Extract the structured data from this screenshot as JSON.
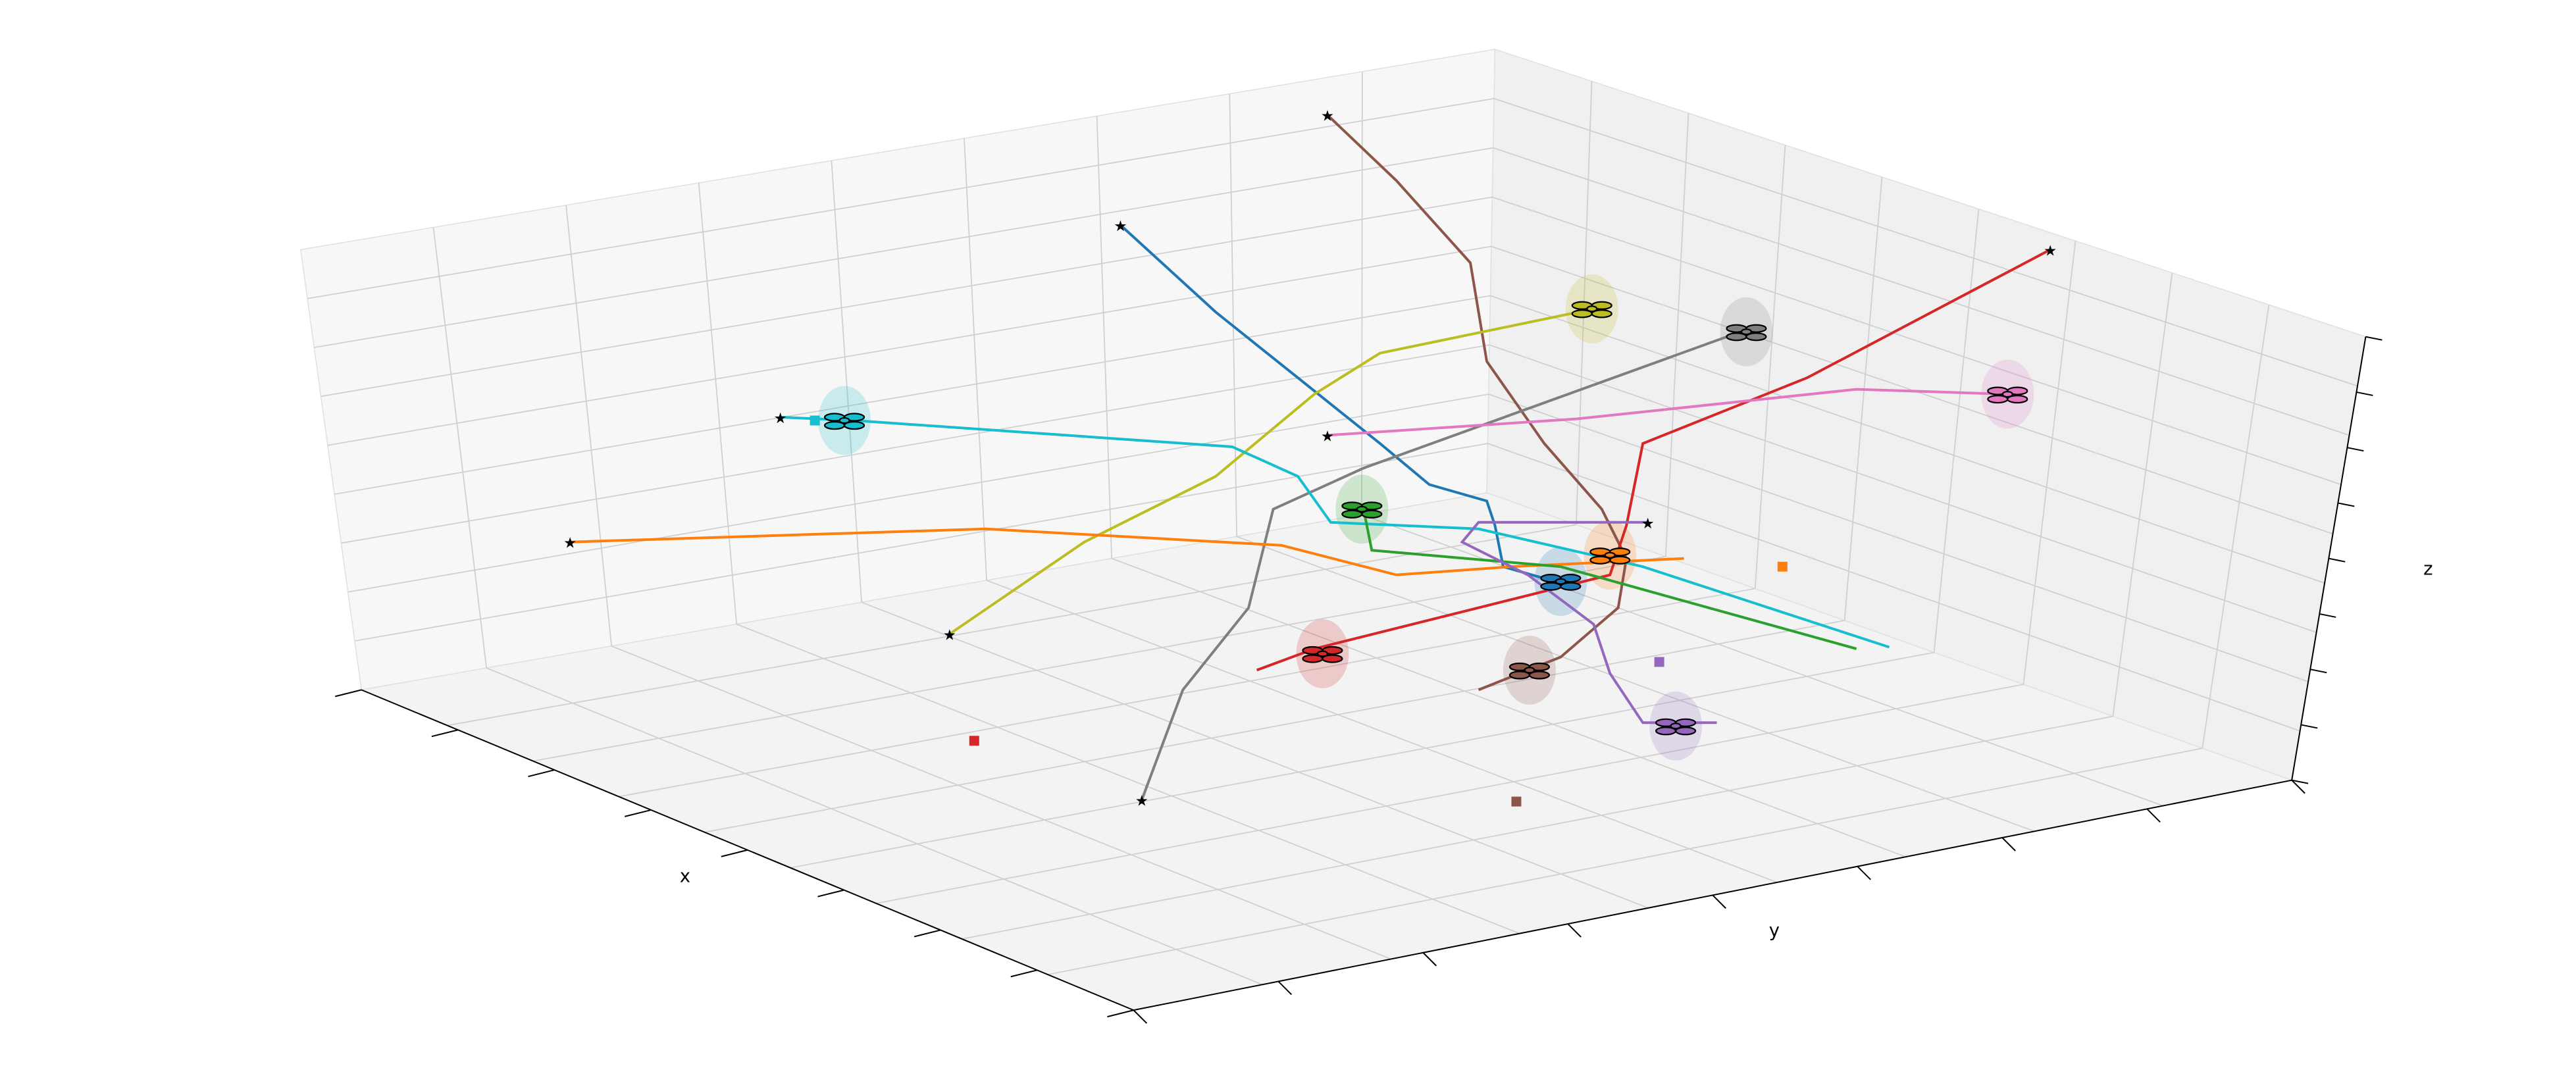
{
  "axes": {
    "x_label": "x",
    "y_label": "y",
    "z_label": "z"
  }
}
